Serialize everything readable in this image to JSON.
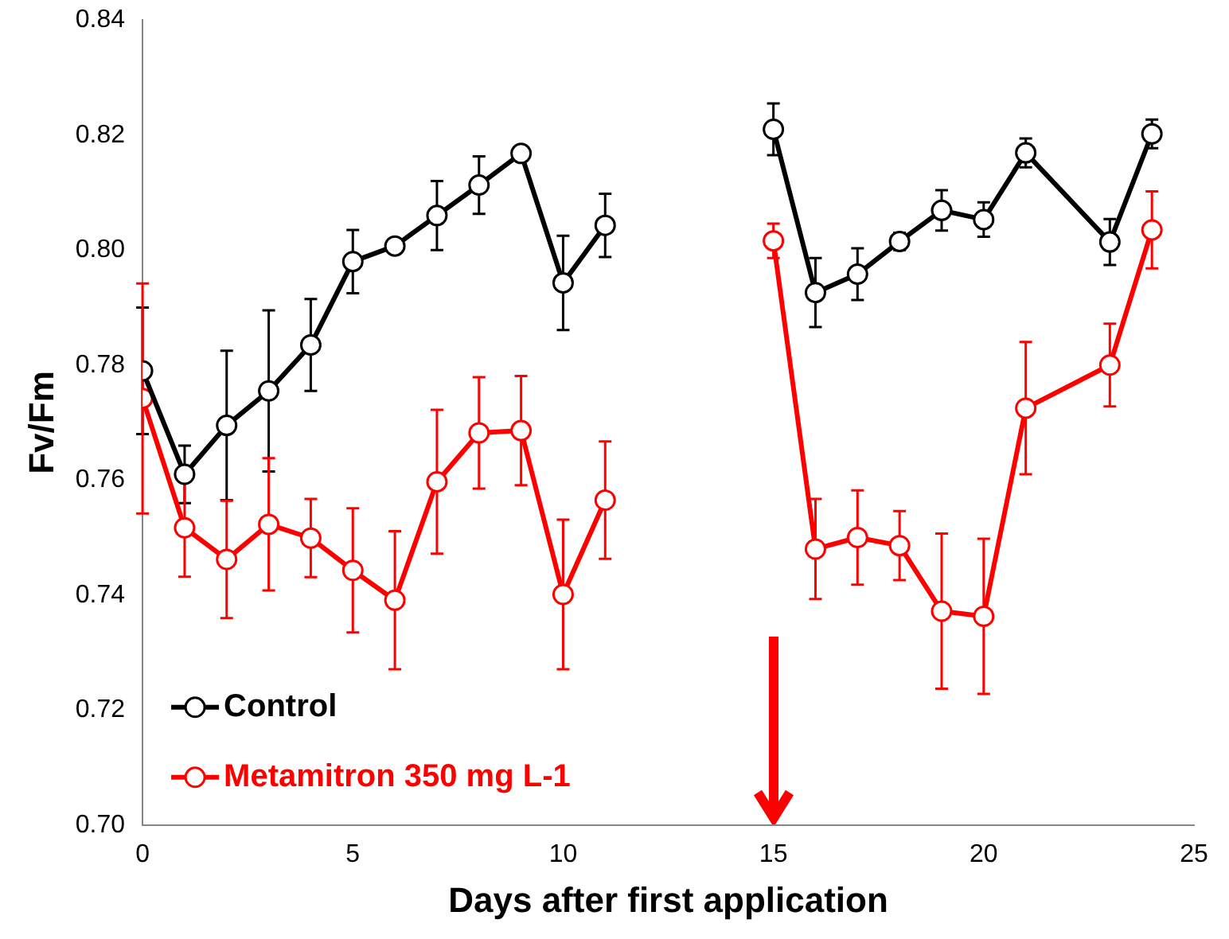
{
  "chart_data": {
    "type": "line",
    "xlabel": "Days after first application",
    "ylabel": "Fv/Fm",
    "x": [
      0,
      1,
      2,
      3,
      4,
      5,
      6,
      7,
      8,
      9,
      10,
      11,
      13,
      15,
      16,
      17,
      18,
      19,
      20,
      21,
      23,
      24
    ],
    "series": [
      {
        "name": "Control",
        "color": "#000000",
        "values": [
          0.779,
          0.761,
          0.7695,
          0.7755,
          0.7835,
          0.798,
          0.8007,
          0.806,
          0.8113,
          0.8168,
          0.7943,
          0.8043,
          null,
          0.821,
          0.7926,
          0.7958,
          0.8015,
          0.8069,
          0.8053,
          0.8169,
          0.8014,
          0.8202
        ],
        "errors": [
          0.011,
          0.005,
          0.013,
          0.014,
          0.008,
          0.0055,
          null,
          0.006,
          0.005,
          null,
          0.0082,
          0.0055,
          null,
          0.0045,
          0.006,
          0.0045,
          0.0015,
          0.0035,
          0.003,
          0.0025,
          0.004,
          0.0025
        ]
      },
      {
        "name": "Metamitron 350 mg L-1",
        "color": "#ff0000",
        "values": [
          0.7742,
          0.7517,
          0.7462,
          0.7523,
          0.7499,
          0.7443,
          0.7391,
          0.7597,
          0.7682,
          0.7686,
          0.7401,
          0.7565,
          null,
          0.8016,
          0.748,
          0.75,
          0.7486,
          0.7372,
          0.7363,
          0.7725,
          0.78,
          0.8035
        ],
        "errors": [
          0.02,
          0.0085,
          0.0102,
          0.0115,
          0.0068,
          0.0108,
          0.012,
          0.0125,
          0.0097,
          0.0095,
          0.013,
          0.0102,
          null,
          0.003,
          0.0087,
          0.0082,
          0.006,
          0.0135,
          0.0135,
          0.0115,
          0.0072,
          0.0067
        ]
      }
    ],
    "xlim": [
      0,
      25
    ],
    "xticks": [
      0,
      5,
      10,
      15,
      20,
      25
    ],
    "ylim": [
      0.7,
      0.84
    ],
    "yticks": [
      {
        "value": 0.7,
        "label": "0.70"
      },
      {
        "value": 0.72,
        "label": "0.72"
      },
      {
        "value": 0.74,
        "label": "0.74"
      },
      {
        "value": 0.76,
        "label": "0.76"
      },
      {
        "value": 0.78,
        "label": "0.78"
      },
      {
        "value": 0.8,
        "label": "0.80"
      },
      {
        "value": 0.82,
        "label": "0.82"
      },
      {
        "value": 0.84,
        "label": "0.84"
      }
    ],
    "grid": false,
    "legend": "bottom left",
    "marker": "circle",
    "line_style": "solid"
  }
}
